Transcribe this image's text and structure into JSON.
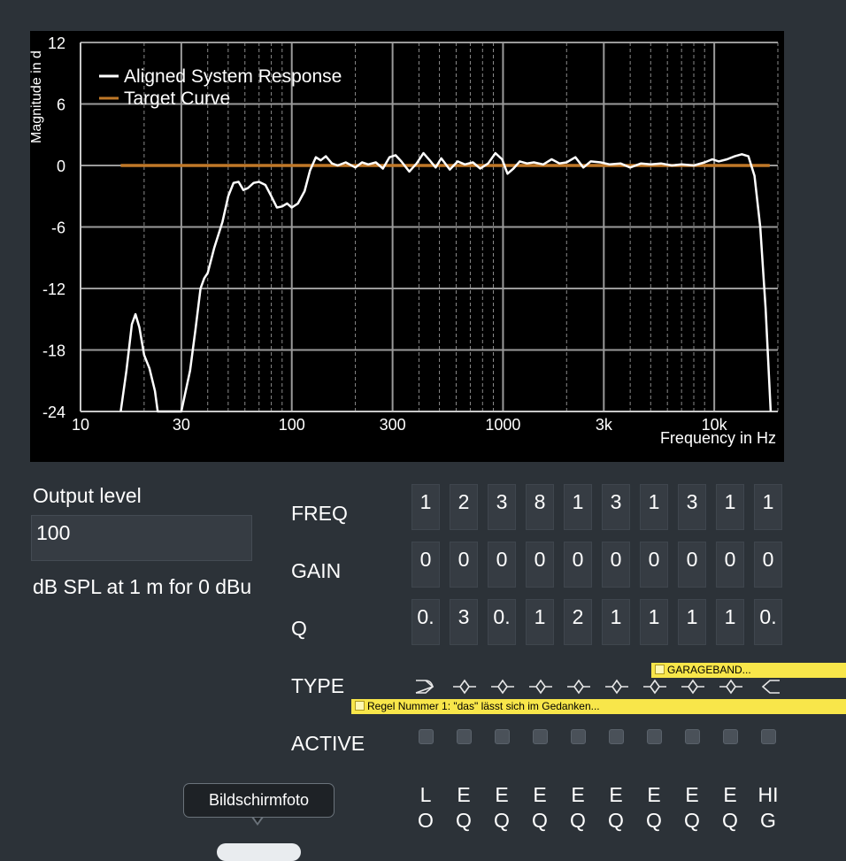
{
  "chart_data": {
    "type": "line",
    "title": "",
    "xlabel": "Frequency in Hz",
    "ylabel": "Magnitude in d",
    "x_scale": "log",
    "xlim": [
      10,
      20000
    ],
    "ylim": [
      -24,
      12
    ],
    "x_ticks": [
      10,
      30,
      100,
      300,
      1000,
      3000,
      10000
    ],
    "x_tick_labels": [
      "10",
      "30",
      "100",
      "300",
      "1000",
      "3k",
      "10k"
    ],
    "y_ticks": [
      12,
      6,
      0,
      -6,
      -12,
      -18,
      -24
    ],
    "y_tick_labels": [
      "12",
      "6",
      "0",
      "-6",
      "-12",
      "-18",
      "-24"
    ],
    "grid": true,
    "legend_position": "top-left",
    "series": [
      {
        "name": "Aligned System Response",
        "color": "#ffffff",
        "points": [
          [
            15.5,
            -24
          ],
          [
            16.5,
            -20
          ],
          [
            17.5,
            -15.5
          ],
          [
            18.2,
            -14.5
          ],
          [
            19,
            -15.8
          ],
          [
            20,
            -18.5
          ],
          [
            21.2,
            -19.8
          ],
          [
            22.5,
            -22
          ],
          [
            23.2,
            -24
          ],
          [
            30,
            -24
          ],
          [
            33,
            -20
          ],
          [
            35,
            -16
          ],
          [
            37,
            -12
          ],
          [
            38.5,
            -11
          ],
          [
            40,
            -10.5
          ],
          [
            43,
            -8
          ],
          [
            47,
            -5.5
          ],
          [
            50,
            -3
          ],
          [
            53,
            -1.7
          ],
          [
            56,
            -1.6
          ],
          [
            59,
            -2.4
          ],
          [
            62,
            -2.2
          ],
          [
            66,
            -1.7
          ],
          [
            70,
            -1.6
          ],
          [
            75,
            -1.9
          ],
          [
            80,
            -3
          ],
          [
            85,
            -4.1
          ],
          [
            90,
            -4
          ],
          [
            95,
            -3.7
          ],
          [
            100,
            -4.1
          ],
          [
            107,
            -3.7
          ],
          [
            115,
            -2.5
          ],
          [
            122,
            -0.5
          ],
          [
            130,
            0.8
          ],
          [
            137,
            0.5
          ],
          [
            145,
            0.9
          ],
          [
            155,
            0.2
          ],
          [
            165,
            0
          ],
          [
            180,
            0.3
          ],
          [
            200,
            -0.2
          ],
          [
            215,
            0.3
          ],
          [
            230,
            0.1
          ],
          [
            250,
            0.3
          ],
          [
            270,
            -0.3
          ],
          [
            290,
            0.8
          ],
          [
            310,
            1
          ],
          [
            330,
            0.4
          ],
          [
            360,
            -0.6
          ],
          [
            390,
            0.2
          ],
          [
            420,
            1.2
          ],
          [
            450,
            0.5
          ],
          [
            480,
            -0.2
          ],
          [
            510,
            0.7
          ],
          [
            560,
            -0.4
          ],
          [
            610,
            0.4
          ],
          [
            660,
            0.1
          ],
          [
            720,
            0.3
          ],
          [
            780,
            -0.3
          ],
          [
            850,
            0.2
          ],
          [
            920,
            1.2
          ],
          [
            990,
            0.6
          ],
          [
            1050,
            -0.8
          ],
          [
            1120,
            -0.3
          ],
          [
            1200,
            0.4
          ],
          [
            1300,
            0.2
          ],
          [
            1400,
            0.3
          ],
          [
            1550,
            0.1
          ],
          [
            1700,
            0.6
          ],
          [
            1850,
            0.2
          ],
          [
            2000,
            0.3
          ],
          [
            2200,
            0.8
          ],
          [
            2400,
            -0.2
          ],
          [
            2600,
            0.4
          ],
          [
            2900,
            0.3
          ],
          [
            3200,
            0.1
          ],
          [
            3600,
            0.2
          ],
          [
            4000,
            -0.2
          ],
          [
            4500,
            0.2
          ],
          [
            5000,
            0.1
          ],
          [
            5600,
            0.2
          ],
          [
            6300,
            0
          ],
          [
            7000,
            0.1
          ],
          [
            8000,
            0
          ],
          [
            9000,
            0.3
          ],
          [
            9800,
            0.6
          ],
          [
            10500,
            0.4
          ],
          [
            11500,
            0.6
          ],
          [
            12500,
            0.9
          ],
          [
            13500,
            1.1
          ],
          [
            14500,
            0.9
          ],
          [
            15500,
            -1
          ],
          [
            16500,
            -6
          ],
          [
            17500,
            -14
          ],
          [
            18500,
            -24
          ]
        ]
      },
      {
        "name": "Target Curve",
        "color": "#c07828",
        "points": [
          [
            15.5,
            0
          ],
          [
            18300,
            0
          ]
        ]
      }
    ]
  },
  "output": {
    "label": "Output level",
    "value": "100",
    "unit": "dB SPL at 1 m for 0 dBu"
  },
  "eq": {
    "row_labels": {
      "freq": "FREQ",
      "gain": "GAIN",
      "q": "Q",
      "type": "TYPE",
      "active": "ACTIVE"
    },
    "bands": [
      {
        "freq": "1",
        "gain": "0",
        "q": "0.",
        "type": "highpass-icon",
        "active": false,
        "name": [
          "L",
          "O"
        ]
      },
      {
        "freq": "2",
        "gain": "0",
        "q": "3",
        "type": "peak-icon",
        "active": false,
        "name": [
          "E",
          "Q"
        ]
      },
      {
        "freq": "3",
        "gain": "0",
        "q": "0.",
        "type": "peak-icon",
        "active": false,
        "name": [
          "E",
          "Q"
        ]
      },
      {
        "freq": "8",
        "gain": "0",
        "q": "1",
        "type": "peak-icon",
        "active": false,
        "name": [
          "E",
          "Q"
        ]
      },
      {
        "freq": "1",
        "gain": "0",
        "q": "2",
        "type": "peak-icon",
        "active": false,
        "name": [
          "E",
          "Q"
        ]
      },
      {
        "freq": "3",
        "gain": "0",
        "q": "1",
        "type": "peak-icon",
        "active": false,
        "name": [
          "E",
          "Q"
        ]
      },
      {
        "freq": "1",
        "gain": "0",
        "q": "1",
        "type": "peak-icon",
        "active": false,
        "name": [
          "E",
          "Q"
        ]
      },
      {
        "freq": "3",
        "gain": "0",
        "q": "1",
        "type": "peak-icon",
        "active": false,
        "name": [
          "E",
          "Q"
        ]
      },
      {
        "freq": "1",
        "gain": "0",
        "q": "1",
        "type": "peak-icon",
        "active": false,
        "name": [
          "E",
          "Q"
        ]
      },
      {
        "freq": "1",
        "gain": "0",
        "q": "0.",
        "type": "lowpass-icon",
        "active": false,
        "name": [
          "HI",
          "G"
        ]
      }
    ]
  },
  "notes": [
    {
      "text": "GARAGEBAND..."
    },
    {
      "text": "Regel Nummer 1: \"das\" lässt sich im Gedanken..."
    }
  ],
  "tooltip": {
    "text": "Bildschirmfoto"
  }
}
